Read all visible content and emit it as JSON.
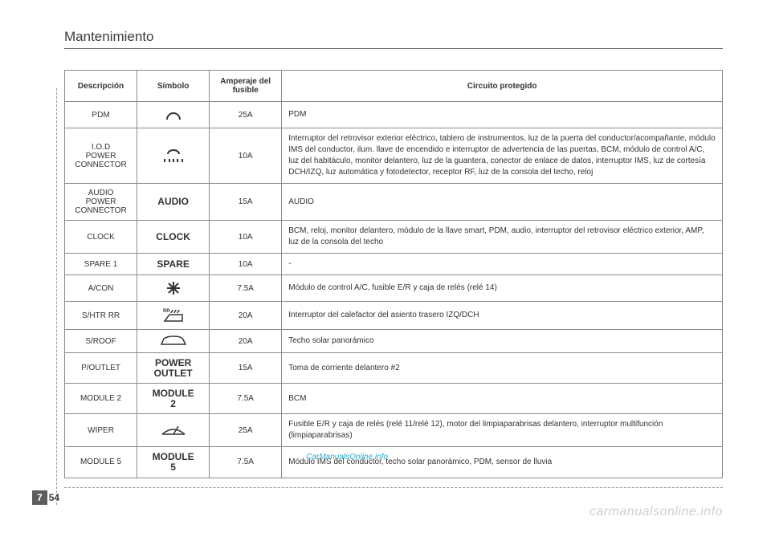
{
  "header": {
    "title": "Mantenimiento"
  },
  "table": {
    "columns": [
      "Descripción",
      "Símbolo",
      "Amperaje del fusible",
      "Circuito protegido"
    ],
    "rows": [
      {
        "desc": "PDM",
        "symbol_kind": "svg-arc",
        "symbol_text": "",
        "amp": "25A",
        "circuit": "PDM"
      },
      {
        "desc": "I.O.D\nPOWER\nCONNECTOR",
        "symbol_kind": "svg-lamp",
        "symbol_text": "",
        "amp": "10A",
        "circuit": "Interruptor del retrovisor exterior eléctrico, tablero de instrumentos, luz de la puerta del conductor/acompañante, módulo IMS del conductor, ilum. llave de encendido e interruptor de advertencia de las puertas, BCM, módulo de control A/C, luz del habitáculo, monitor delantero, luz de la guantera, conector de enlace de datos, interruptor IMS, luz de cortesía DCH/IZQ, luz automática y fotodetector, receptor RF, luz de la consola del techo, reloj"
      },
      {
        "desc": "AUDIO\nPOWER\nCONNECTOR",
        "symbol_kind": "text",
        "symbol_text": "AUDIO",
        "amp": "15A",
        "circuit": "AUDIO"
      },
      {
        "desc": "CLOCK",
        "symbol_kind": "text",
        "symbol_text": "CLOCK",
        "amp": "10A",
        "circuit": "BCM, reloj, monitor delantero, módulo de la llave smart, PDM, audio, interruptor del retrovisor eléctrico exterior, AMP, luz de la consola del techo"
      },
      {
        "desc": "SPARE 1",
        "symbol_kind": "text",
        "symbol_text": "SPARE",
        "amp": "10A",
        "circuit": "-"
      },
      {
        "desc": "A/CON",
        "symbol_kind": "svg-snow",
        "symbol_text": "",
        "amp": "7.5A",
        "circuit": "Módulo de control A/C, fusible E/R y caja de relés (relé 14)"
      },
      {
        "desc": "S/HTR RR",
        "symbol_kind": "svg-heater",
        "symbol_text": "",
        "amp": "20A",
        "circuit": "Interruptor del calefactor del asiento trasero IZQ/DCH"
      },
      {
        "desc": "S/ROOF",
        "symbol_kind": "svg-car",
        "symbol_text": "",
        "amp": "20A",
        "circuit": "Techo solar panorámico"
      },
      {
        "desc": "P/OUTLET",
        "symbol_kind": "text",
        "symbol_text": "POWER\nOUTLET",
        "amp": "15A",
        "circuit": "Toma de corriente delantero #2"
      },
      {
        "desc": "MODULE 2",
        "symbol_kind": "text",
        "symbol_text": "MODULE\n2",
        "amp": "7.5A",
        "circuit": "BCM"
      },
      {
        "desc": "WIPER",
        "symbol_kind": "svg-wiper",
        "symbol_text": "",
        "amp": "25A",
        "circuit": "Fusible E/R y caja de relés (relé 11/relé 12), motor del limpiaparabrisas delantero, interruptor multifunción (limpiaparabrisas)"
      },
      {
        "desc": "MODULE 5",
        "symbol_kind": "text",
        "symbol_text": "MODULE\n5",
        "amp": "7.5A",
        "circuit_prefix": "Módulo IMS del conductor, ",
        "circuit_link": "CarManualsOnline.info",
        "circuit_suffix": "techo solar panorámico, PDM, sensor de lluvia",
        "has_link": true
      }
    ]
  },
  "footer": {
    "section": "7",
    "page": "54",
    "watermark": "carmanualsonline.info"
  },
  "colors": {
    "text": "#333333",
    "border": "#8a8a8a",
    "rule": "#6a6a6a",
    "section_bg": "#5d5d5d",
    "watermark": "#cfcfcf",
    "link": "#2aa8c9"
  },
  "svg": {
    "stroke": "#333333"
  }
}
